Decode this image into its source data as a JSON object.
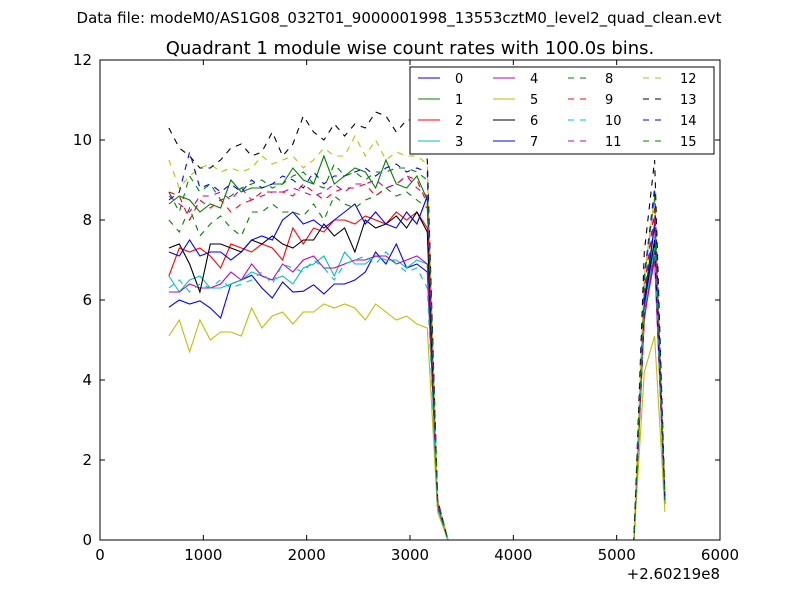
{
  "figure": {
    "suptitle": "Data file: modeM0/AS1G08_032T01_9000001998_13553cztM0_level2_quad_clean.evt",
    "background": "#ffffff"
  },
  "chart_data": {
    "type": "line",
    "title": "Quadrant 1 module wise count rates with 100.0s bins.",
    "xlabel": "",
    "ylabel": "",
    "xlim": [
      0,
      6000
    ],
    "ylim": [
      0,
      12
    ],
    "x_offset_label": "+2.60219e8",
    "xticks": [
      0,
      1000,
      2000,
      3000,
      4000,
      5000,
      6000
    ],
    "yticks": [
      0,
      2,
      4,
      6,
      8,
      10,
      12
    ],
    "grid": false,
    "legend_position": "top-right",
    "legend_columns": 4,
    "x": [
      667,
      767,
      867,
      967,
      1067,
      1167,
      1267,
      1367,
      1467,
      1567,
      1667,
      1767,
      1867,
      1967,
      2067,
      2167,
      2267,
      2367,
      2467,
      2567,
      2667,
      2767,
      2867,
      2967,
      3067,
      3167,
      3267,
      3367,
      5167,
      5267,
      5367,
      5467
    ],
    "series": [
      {
        "name": "0",
        "color": "#0000ff",
        "dash": "solid",
        "values": [
          5.82,
          6.0,
          5.9,
          5.98,
          5.8,
          5.55,
          6.4,
          6.5,
          6.62,
          6.3,
          6.05,
          6.45,
          6.2,
          6.22,
          6.38,
          6.15,
          6.4,
          6.4,
          6.5,
          6.7,
          7.2,
          6.9,
          7.4,
          6.8,
          6.9,
          6.7,
          1.0,
          0,
          0,
          5.6,
          7.1,
          1.0
        ]
      },
      {
        "name": "1",
        "color": "#008000",
        "dash": "solid",
        "values": [
          8.4,
          8.6,
          8.5,
          8.2,
          8.4,
          8.3,
          9.0,
          8.7,
          8.8,
          8.8,
          8.9,
          8.9,
          9.3,
          9.0,
          8.9,
          9.6,
          8.9,
          9.1,
          9.3,
          9.2,
          8.8,
          9.5,
          8.9,
          8.8,
          9.1,
          8.5,
          0.8,
          0,
          0,
          5.7,
          7.9,
          1.0
        ]
      },
      {
        "name": "2",
        "color": "#ff0000",
        "dash": "solid",
        "values": [
          6.6,
          7.3,
          7.2,
          7.3,
          7.1,
          6.8,
          7.4,
          7.3,
          7.2,
          7.4,
          7.3,
          7.0,
          7.8,
          7.4,
          7.8,
          7.7,
          8.0,
          8.0,
          7.9,
          8.1,
          8.0,
          7.9,
          8.2,
          8.0,
          8.2,
          7.8,
          0.9,
          0,
          0,
          5.5,
          7.3,
          0.9
        ]
      },
      {
        "name": "3",
        "color": "#00bfbf",
        "dash": "solid",
        "values": [
          6.6,
          6.2,
          6.5,
          6.6,
          6.3,
          6.3,
          6.4,
          6.5,
          6.7,
          6.6,
          6.5,
          6.6,
          6.4,
          6.8,
          6.9,
          7.1,
          6.6,
          7.2,
          6.9,
          6.9,
          7.1,
          7.0,
          7.0,
          6.8,
          7.0,
          6.9,
          0.8,
          0,
          0,
          5.8,
          7.4,
          0.9
        ]
      },
      {
        "name": "4",
        "color": "#bf00bf",
        "dash": "solid",
        "values": [
          6.2,
          6.2,
          6.4,
          6.3,
          6.3,
          6.4,
          6.7,
          6.5,
          6.9,
          6.6,
          6.5,
          6.9,
          6.7,
          7.0,
          7.1,
          6.8,
          6.8,
          6.9,
          7.0,
          7.0,
          7.1,
          7.1,
          6.9,
          7.0,
          7.1,
          6.9,
          0.8,
          0,
          0,
          5.6,
          7.0,
          0.9
        ]
      },
      {
        "name": "5",
        "color": "#bfbf00",
        "dash": "solid",
        "values": [
          5.1,
          5.5,
          4.7,
          5.5,
          5.0,
          5.2,
          5.2,
          5.1,
          5.8,
          5.3,
          5.6,
          5.7,
          5.4,
          5.7,
          5.7,
          5.9,
          5.8,
          5.9,
          5.8,
          5.5,
          5.9,
          5.7,
          5.5,
          5.6,
          5.4,
          5.3,
          0.7,
          0,
          0,
          4.2,
          5.1,
          0.7
        ]
      },
      {
        "name": "6",
        "color": "#000000",
        "dash": "solid",
        "values": [
          7.3,
          7.4,
          6.9,
          6.2,
          7.4,
          7.4,
          7.3,
          7.2,
          7.5,
          7.4,
          7.6,
          7.4,
          7.3,
          7.5,
          7.5,
          7.9,
          7.6,
          7.8,
          7.2,
          8.0,
          7.8,
          7.9,
          8.1,
          7.8,
          8.2,
          7.7,
          0.9,
          0,
          0,
          5.9,
          7.5,
          1.0
        ]
      },
      {
        "name": "7",
        "color": "#0000ff",
        "dash": "solid",
        "values": [
          7.2,
          7.1,
          7.5,
          7.1,
          7.2,
          7.2,
          7.0,
          7.2,
          7.5,
          7.6,
          7.5,
          8.0,
          8.2,
          7.9,
          8.0,
          7.8,
          8.0,
          8.2,
          8.4,
          7.9,
          8.2,
          7.9,
          7.8,
          8.2,
          7.9,
          8.6,
          0.9,
          0,
          0,
          6.0,
          7.9,
          1.0
        ]
      },
      {
        "name": "8",
        "color": "#008000",
        "dash": "dashed",
        "values": [
          8.0,
          7.7,
          8.3,
          7.6,
          7.9,
          8.1,
          7.8,
          7.6,
          8.2,
          8.2,
          8.4,
          8.2,
          8.2,
          8.1,
          8.4,
          8.0,
          8.6,
          8.4,
          8.3,
          8.5,
          8.6,
          8.8,
          8.6,
          8.7,
          8.5,
          8.3,
          0.9,
          0,
          0,
          6.2,
          8.1,
          1.0
        ]
      },
      {
        "name": "9",
        "color": "#ff0000",
        "dash": "dashed",
        "values": [
          8.7,
          8.6,
          8.0,
          8.5,
          8.3,
          8.5,
          8.2,
          8.4,
          8.5,
          8.7,
          8.7,
          8.7,
          8.6,
          8.9,
          8.7,
          8.5,
          8.7,
          8.8,
          8.8,
          8.9,
          8.6,
          8.8,
          8.9,
          9.1,
          9.0,
          8.4,
          0.9,
          0,
          0,
          6.3,
          8.3,
          1.0
        ]
      },
      {
        "name": "10",
        "color": "#00bfbf",
        "dash": "dashed",
        "values": [
          6.3,
          6.5,
          6.2,
          6.4,
          6.3,
          6.5,
          6.3,
          6.4,
          6.5,
          6.7,
          6.4,
          6.9,
          6.8,
          6.7,
          7.0,
          6.8,
          6.5,
          6.9,
          7.0,
          7.1,
          6.9,
          7.2,
          6.9,
          6.7,
          6.8,
          6.3,
          0.8,
          0,
          0,
          5.7,
          7.3,
          0.9
        ]
      },
      {
        "name": "11",
        "color": "#bf00bf",
        "dash": "dashed",
        "values": [
          8.6,
          8.4,
          8.2,
          8.6,
          8.6,
          8.7,
          8.5,
          8.8,
          8.5,
          8.6,
          8.7,
          8.7,
          8.8,
          8.7,
          8.6,
          8.7,
          8.9,
          8.7,
          8.9,
          8.9,
          9.0,
          8.8,
          8.9,
          9.1,
          8.8,
          8.6,
          0.9,
          0,
          0,
          6.2,
          8.1,
          1.0
        ]
      },
      {
        "name": "12",
        "color": "#bfbf00",
        "dash": "dashed",
        "values": [
          9.5,
          8.8,
          9.1,
          9.3,
          9.4,
          9.2,
          9.3,
          9.2,
          9.3,
          9.6,
          9.4,
          9.5,
          9.6,
          9.3,
          9.5,
          9.8,
          9.6,
          9.6,
          10.1,
          9.6,
          10.0,
          9.5,
          9.7,
          9.6,
          9.6,
          9.4,
          1.0,
          0,
          0,
          6.6,
          8.6,
          1.1
        ]
      },
      {
        "name": "13",
        "color": "#000000",
        "dash": "dashed",
        "values": [
          10.3,
          9.8,
          9.6,
          9.3,
          9.3,
          9.5,
          9.8,
          9.9,
          9.6,
          9.7,
          10.2,
          9.6,
          9.9,
          10.6,
          10.2,
          10.0,
          10.4,
          10.1,
          10.4,
          10.3,
          10.7,
          10.6,
          10.2,
          10.5,
          10.5,
          9.5,
          1.0,
          0,
          0,
          7.2,
          9.5,
          1.1
        ]
      },
      {
        "name": "14",
        "color": "#0000ff",
        "dash": "dashed",
        "values": [
          8.5,
          8.7,
          9.7,
          8.8,
          8.9,
          8.7,
          8.9,
          8.7,
          9.0,
          8.8,
          8.9,
          9.1,
          9.0,
          8.8,
          9.2,
          8.9,
          9.1,
          9.1,
          9.2,
          9.3,
          9.1,
          9.3,
          9.4,
          9.2,
          9.3,
          9.2,
          1.0,
          0,
          0,
          6.6,
          8.8,
          1.0
        ]
      },
      {
        "name": "15",
        "color": "#008000",
        "dash": "dashed",
        "values": [
          8.7,
          8.2,
          9.1,
          8.7,
          8.9,
          8.5,
          8.6,
          8.8,
          8.9,
          9.0,
          8.8,
          8.9,
          9.1,
          9.2,
          8.9,
          8.8,
          9.4,
          9.1,
          9.2,
          9.0,
          9.2,
          9.2,
          9.3,
          9.3,
          9.2,
          9.0,
          1.0,
          0,
          0,
          6.5,
          8.6,
          1.0
        ]
      }
    ]
  }
}
